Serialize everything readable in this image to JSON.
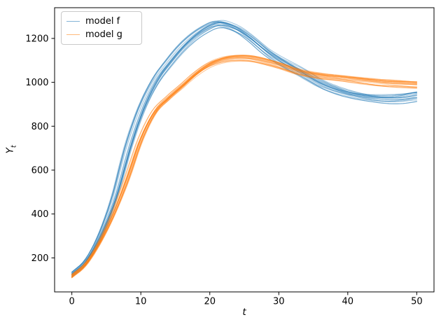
{
  "figure": {
    "background": "#ffffff",
    "ylabel_base": "Y",
    "ylabel_sub": "t"
  },
  "chart_data": {
    "type": "line",
    "title": "",
    "xlabel": "t",
    "ylabel": "Y_t",
    "xlim": [
      -2.5,
      52.5
    ],
    "ylim": [
      45,
      1340
    ],
    "xticks": [
      0,
      10,
      20,
      30,
      40,
      50
    ],
    "yticks": [
      200,
      400,
      600,
      800,
      1000,
      1200
    ],
    "grid": false,
    "legend": {
      "position": "upper left",
      "entries": [
        "model f",
        "model g"
      ]
    },
    "description": "Two ensembles of stochastic trajectories: model f (blue) overshoots to ~1266 near t=21, dips to ~924 near t=45 and recovers to ~938; model g (orange) peaks at ~1113 near t=24 and settles to ~989. Curves cross near t=33 at ~1046.",
    "series": [
      {
        "name": "model f",
        "color": "#1f77b4",
        "alpha": 0.42,
        "n_lines": 16,
        "line_width": 1.1,
        "base_curve": {
          "t": [
            0,
            2,
            4,
            6,
            8,
            10,
            12,
            14,
            16,
            18,
            20,
            21,
            22,
            24,
            26,
            28,
            30,
            33,
            36,
            39,
            42,
            45,
            47.5,
            50
          ],
          "y": [
            125,
            185,
            300,
            470,
            700,
            880,
            1005,
            1090,
            1163,
            1218,
            1256,
            1266,
            1263,
            1238,
            1193,
            1140,
            1098,
            1045,
            990,
            955,
            934,
            924,
            926,
            938
          ]
        },
        "ensemble": {
          "rel_spread": [
            0.004,
            0.015
          ],
          "abs_spread": 11,
          "t_jitter": 0.7,
          "wiggle": [
            3,
            7
          ]
        }
      },
      {
        "name": "model g",
        "color": "#ff7f0e",
        "alpha": 0.42,
        "n_lines": 16,
        "line_width": 1.1,
        "base_curve": {
          "t": [
            0,
            2,
            4,
            6,
            8,
            10,
            12,
            14,
            16,
            18,
            20,
            22,
            24,
            26,
            28,
            30,
            33,
            36,
            39,
            42,
            45,
            50
          ],
          "y": [
            118,
            172,
            270,
            400,
            560,
            740,
            865,
            930,
            985,
            1040,
            1082,
            1105,
            1113,
            1110,
            1096,
            1078,
            1047,
            1030,
            1020,
            1010,
            1000,
            989
          ]
        },
        "ensemble": {
          "rel_spread": [
            0.004,
            0.01
          ],
          "abs_spread": 9,
          "t_jitter": 0.5,
          "wiggle": [
            2.5,
            5
          ]
        }
      }
    ]
  }
}
